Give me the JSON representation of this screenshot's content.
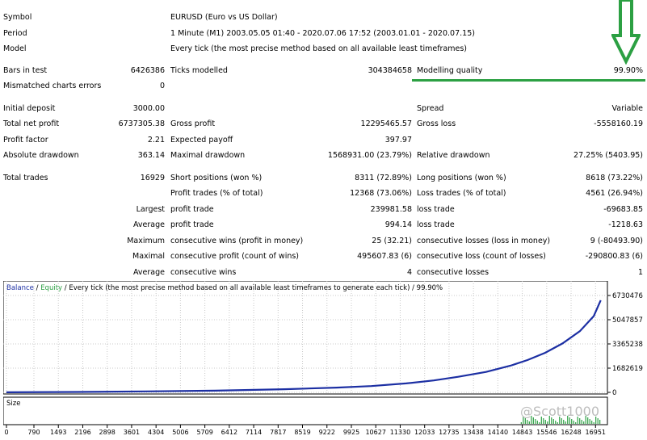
{
  "report": {
    "symbol_label": "Symbol",
    "symbol_value": "EURUSD (Euro vs US Dollar)",
    "period_label": "Period",
    "period_value": "1 Minute (M1) 2003.05.05 01:40 - 2020.07.06 17:52 (2003.01.01 - 2020.07.15)",
    "model_label": "Model",
    "model_value": "Every tick (the most precise method based on all available least timeframes)",
    "bars_label": "Bars in test",
    "bars_value": "6426386",
    "ticks_label": "Ticks modelled",
    "ticks_value": "304384658",
    "mq_label": "Modelling quality",
    "mq_value": "99.90%",
    "mismatched_label": "Mismatched charts errors",
    "mismatched_value": "0",
    "initial_deposit_label": "Initial deposit",
    "initial_deposit_value": "3000.00",
    "spread_label": "Spread",
    "spread_value": "Variable",
    "net_profit_label": "Total net profit",
    "net_profit_value": "6737305.38",
    "gross_profit_label": "Gross profit",
    "gross_profit_value": "12295465.57",
    "gross_loss_label": "Gross loss",
    "gross_loss_value": "-5558160.19",
    "profit_factor_label": "Profit factor",
    "profit_factor_value": "2.21",
    "expected_payoff_label": "Expected payoff",
    "expected_payoff_value": "397.97",
    "abs_dd_label": "Absolute drawdown",
    "abs_dd_value": "363.14",
    "max_dd_label": "Maximal drawdown",
    "max_dd_value": "1568931.00 (23.79%)",
    "rel_dd_label": "Relative drawdown",
    "rel_dd_value": "27.25% (5403.95)",
    "total_trades_label": "Total trades",
    "total_trades_value": "16929",
    "short_label": "Short positions (won %)",
    "short_value": "8311 (72.89%)",
    "long_label": "Long positions (won %)",
    "long_value": "8618 (73.22%)",
    "profit_trades_label": "Profit trades (% of total)",
    "profit_trades_value": "12368 (73.06%)",
    "loss_trades_label": "Loss trades (% of total)",
    "loss_trades_value": "4561 (26.94%)",
    "largest_label": "Largest",
    "largest_profit_label": "profit trade",
    "largest_profit_value": "239981.58",
    "largest_loss_label": "loss trade",
    "largest_loss_value": "-69683.85",
    "average_label": "Average",
    "average_profit_label": "profit trade",
    "average_profit_value": "994.14",
    "average_loss_label": "loss trade",
    "average_loss_value": "-1218.63",
    "maximum_label": "Maximum",
    "max_cons_wins_label": "consecutive wins (profit in money)",
    "max_cons_wins_value": "25 (32.21)",
    "max_cons_losses_label": "consecutive losses (loss in money)",
    "max_cons_losses_value": "9 (-80493.90)",
    "maximal_label": "Maximal",
    "maximal_cons_profit_label": "consecutive profit (count of wins)",
    "maximal_cons_profit_value": "495607.83 (6)",
    "maximal_cons_loss_label": "consecutive loss (count of losses)",
    "maximal_cons_loss_value": "-290800.83 (6)",
    "avg_cons_label": "Average",
    "avg_cons_wins_label": "consecutive wins",
    "avg_cons_wins_value": "4",
    "avg_cons_losses_label": "consecutive losses",
    "avg_cons_losses_value": "1"
  },
  "chart_data": {
    "type": "line",
    "legend": {
      "balance": "Balance",
      "sep1": " / ",
      "equity": "Equity",
      "sep2": " / ",
      "description": "Every tick (the most precise method based on all available least timeframes to generate each tick)",
      "sep3": " / ",
      "quality": "99.90%"
    },
    "y_ticks": [
      "6730476",
      "5047857",
      "3365238",
      "1682619",
      "0"
    ],
    "x_ticks": [
      "0",
      "790",
      "1493",
      "2196",
      "2898",
      "3601",
      "4304",
      "5006",
      "5709",
      "6412",
      "7114",
      "7817",
      "8519",
      "9222",
      "9925",
      "10627",
      "11330",
      "12033",
      "12735",
      "13438",
      "14140",
      "14843",
      "15546",
      "16248",
      "16951"
    ],
    "ylim": [
      0,
      6730476
    ],
    "xlim": [
      0,
      17200
    ],
    "grid": true,
    "size_label": "Size",
    "series": [
      {
        "name": "Balance",
        "color": "#1c2fa3",
        "x": [
          0,
          2000,
          4000,
          6000,
          8000,
          9500,
          10500,
          11500,
          12300,
          13000,
          13800,
          14500,
          15000,
          15500,
          16000,
          16500,
          16900,
          17100
        ],
        "y": [
          3000,
          30000,
          70000,
          120000,
          220000,
          330000,
          440000,
          620000,
          830000,
          1080000,
          1420000,
          1850000,
          2250000,
          2750000,
          3400000,
          4250000,
          5300000,
          6400000
        ]
      },
      {
        "name": "Equity",
        "color": "#2ca043",
        "x": [],
        "y": []
      }
    ]
  },
  "annotations": {
    "watermark": "@Scott1000",
    "arrow_color": "#2ca043",
    "underline_color": "#2ca043"
  }
}
